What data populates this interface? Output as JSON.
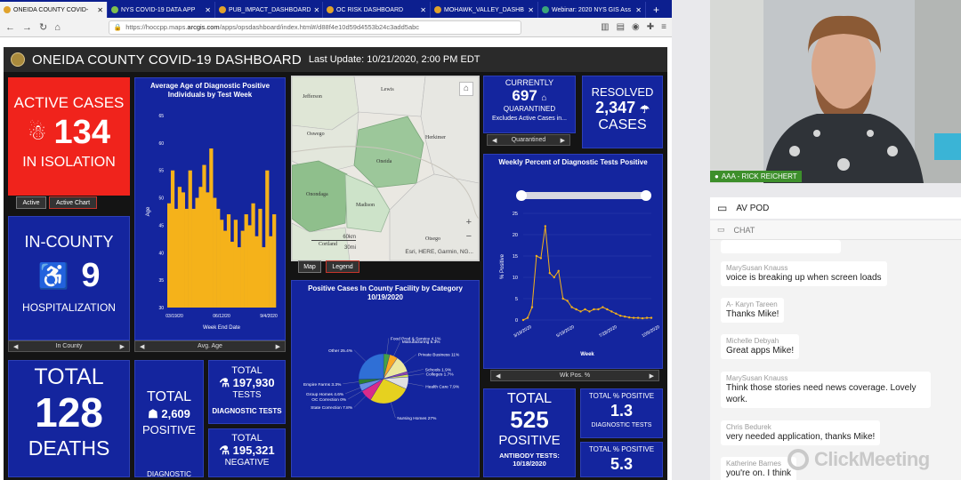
{
  "browser": {
    "tabs": [
      {
        "label": "ONEIDA COUNTY COVID-"
      },
      {
        "label": "NYS COVID-19 DATA APP"
      },
      {
        "label": "PUB_IMPACT_DASHBOARD"
      },
      {
        "label": "OC RISK DASHBOARD"
      },
      {
        "label": "MOHAWK_VALLEY_DASHB"
      },
      {
        "label": "Webinar: 2020 NYS GIS Ass"
      }
    ],
    "url_pre": "https://hoccpp.maps.",
    "url_host": "arcgis.com",
    "url_post": "/apps/opsdashboard/index.html#/d88f4e10d59d4553b24c3add5abc"
  },
  "dashboard": {
    "title": "ONEIDA COUNTY COVID-19 DASHBOARD",
    "last_update": "Last Update: 10/21/2020, 2:00 PM EDT",
    "active": {
      "label_top": "ACTIVE CASES",
      "value": "134",
      "label_bottom": "IN ISOLATION"
    },
    "active_tabs": [
      "Active",
      "Active Chart"
    ],
    "incounty": {
      "label_top": "IN-COUNTY",
      "value": "9",
      "label_bottom": "HOSPITALIZATION",
      "selector": "In County"
    },
    "deaths": {
      "label_top": "TOTAL",
      "value": "128",
      "label_bottom": "DEATHS"
    },
    "avg_age_chart": {
      "selector": "Avg. Age"
    },
    "map": {
      "labels": [
        "Jefferson",
        "Lewis",
        "Oswego",
        "Herkimer",
        "Oneida",
        "Onondaga",
        "Madison",
        "Cortland",
        "Otsego"
      ],
      "scale": "60km",
      "scale2": "30mi",
      "attribution": "Esri, HERE, Garmin, NG...",
      "tabs": [
        "Map",
        "Legend"
      ]
    },
    "quarantined": {
      "label_top": "CURRENTLY",
      "value": "697",
      "label_mid": "QUARANTINED",
      "note": "Excludes Active Cases in...",
      "selector": "Quarantined"
    },
    "resolved": {
      "label_top": "RESOLVED",
      "value": "2,347",
      "label_bottom": "CASES"
    },
    "weekly_chart": {
      "selector": "Wk Pos. %"
    },
    "total_positive": {
      "label_top": "TOTAL",
      "value": "2,609",
      "label_bottom": "POSITIVE",
      "footer": "DIAGNOSTIC"
    },
    "tests": {
      "label_top": "TOTAL",
      "value": "197,930",
      "mid": "TESTS",
      "footer": "DIAGNOSTIC TESTS"
    },
    "negative": {
      "label_top": "TOTAL",
      "value": "195,321",
      "mid": "NEGATIVE"
    },
    "antibody": {
      "label_top": "TOTAL",
      "value": "525",
      "mid": "POSITIVE",
      "footer1": "ANTIBODY TESTS:",
      "footer2": "10/18/2020"
    },
    "pos_pct": {
      "label_top": "TOTAL % POSITIVE",
      "value": "1.3",
      "footer": "DIAGNOSTIC TESTS"
    },
    "pos_pct2": {
      "label_top": "TOTAL % POSITIVE",
      "value": "5.3"
    }
  },
  "chart_data": [
    {
      "type": "bar",
      "title": "Average Age of Diagnostic Positive Individuals by Test Week",
      "xlabel": "Week End Date",
      "ylabel": "Age",
      "ylim": [
        30,
        65
      ],
      "yticks": [
        "30",
        "35",
        "40",
        "45",
        "50",
        "55",
        "60",
        "65"
      ],
      "xticks": [
        "03/19/20",
        "06/12/20",
        "9/4/2020"
      ],
      "color": "#f5b21a",
      "values": [
        49,
        55,
        48,
        52,
        51,
        48,
        55,
        48,
        50,
        52,
        56,
        51,
        59,
        50,
        48,
        46,
        44,
        47,
        42,
        46,
        41,
        44,
        47,
        45,
        49,
        43,
        48,
        41,
        55,
        43,
        47
      ]
    },
    {
      "type": "line",
      "title": "Weekly Percent of Diagnostic Tests Positive",
      "xlabel": "Week",
      "ylabel": "% Positive",
      "ylim": [
        0,
        25
      ],
      "yticks": [
        "0",
        "5",
        "10",
        "15",
        "20",
        "25"
      ],
      "xticks": [
        "3/19/2020",
        "5/19/2020",
        "7/28/2020",
        "10/6/2020"
      ],
      "color": "#f5b21a",
      "values": [
        0,
        0.5,
        3,
        15,
        14.5,
        22,
        11,
        10,
        11.5,
        5,
        4.5,
        3,
        2.5,
        2,
        2.5,
        2,
        2.5,
        2.5,
        3,
        2.5,
        2,
        1.5,
        1,
        0.8,
        0.6,
        0.5,
        0.5,
        0.4,
        0.5,
        0.5
      ]
    },
    {
      "type": "pie",
      "title": "Positive Cases In County Facility by Category",
      "subtitle": "10/19/2020",
      "slices": [
        {
          "label": "Food Prod & Service",
          "pct": "4.1%",
          "value": 4.1,
          "color": "#43a047"
        },
        {
          "label": "Manufacturing",
          "pct": "5.3%",
          "value": 5.3,
          "color": "#f9a825"
        },
        {
          "label": "Private Business",
          "pct": "11%",
          "value": 11,
          "color": "#ece8a0"
        },
        {
          "label": "Schools",
          "pct": "1.9%",
          "value": 1.9,
          "color": "#8e44ad"
        },
        {
          "label": "Colleges",
          "pct": "1.7%",
          "value": 1.7,
          "color": "#d4e157"
        },
        {
          "label": "Health Care",
          "pct": "7.9%",
          "value": 7.9,
          "color": "#e0e0e0"
        },
        {
          "label": "Nursing Homes",
          "pct": "27%",
          "value": 27,
          "color": "#e6d11f"
        },
        {
          "label": "State Correction",
          "pct": "7.8%",
          "value": 7.8,
          "color": "#d92b8a"
        },
        {
          "label": "OC Correction",
          "pct": "0%",
          "value": 0.2,
          "color": "#888888"
        },
        {
          "label": "Group Homes",
          "pct": "4.6%",
          "value": 4.6,
          "color": "#6a8fe3"
        },
        {
          "label": "Empire Farms",
          "pct": "3.3%",
          "value": 3.3,
          "color": "#2e7d32"
        },
        {
          "label": "Other",
          "pct": "25.4%",
          "value": 25.4,
          "color": "#2f6fd6"
        }
      ]
    }
  ],
  "video": {
    "name": "AAA - RICK REICHERT"
  },
  "avpod": {
    "label": "AV POD"
  },
  "chat": {
    "header": "CHAT",
    "messages": [
      {
        "who": "MarySusan Knauss",
        "text": "voice is breaking up when screen loads"
      },
      {
        "who": "A- Karyn Tareen",
        "text": "Thanks Mike!"
      },
      {
        "who": "Michelle Debyah",
        "text": "Great apps Mike!"
      },
      {
        "who": "MarySusan Knauss",
        "text": "Think those stories need news coverage. Lovely work."
      },
      {
        "who": "Chris Bedurek",
        "text": "very needed application, thanks Mike!"
      },
      {
        "who": "Katherine Barnes",
        "text": "you're on. I think"
      }
    ]
  },
  "watermark": "ClickMeeting"
}
